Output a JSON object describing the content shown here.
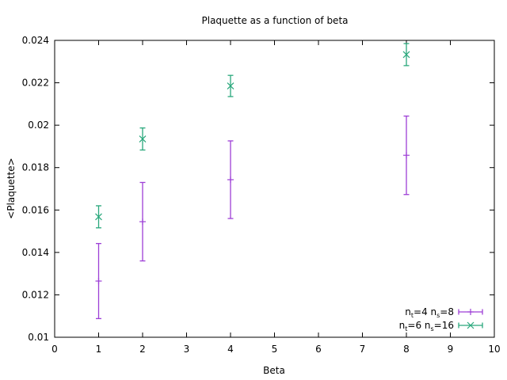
{
  "chart_data": {
    "type": "scatter",
    "title": "Plaquette as a function of beta",
    "xlabel": "Beta",
    "ylabel": "<Plaquette>",
    "xlim": [
      0,
      10
    ],
    "ylim": [
      0.01,
      0.024
    ],
    "xticks": [
      0,
      1,
      2,
      3,
      4,
      5,
      6,
      7,
      8,
      9,
      10
    ],
    "xtick_labels": [
      "0",
      "1",
      "2",
      "3",
      "4",
      "5",
      "6",
      "7",
      "8",
      "9",
      "10"
    ],
    "yticks": [
      0.01,
      0.012,
      0.014,
      0.016,
      0.018,
      0.02,
      0.022,
      0.024
    ],
    "ytick_labels": [
      "0.01",
      "0.012",
      "0.014",
      "0.016",
      "0.018",
      "0.02",
      "0.022",
      "0.024"
    ],
    "grid": false,
    "legend_position": "bottom-right",
    "series": [
      {
        "legend": {
          "a": "n",
          "a_sub": "t",
          "b": "=4 n",
          "b_sub": "s",
          "c": "=8"
        },
        "color": "#9d3fd6",
        "marker": "plus",
        "points": [
          {
            "x": 1,
            "y": 0.01265,
            "yerr": 0.00177
          },
          {
            "x": 2,
            "y": 0.01545,
            "yerr": 0.00185
          },
          {
            "x": 4,
            "y": 0.01743,
            "yerr": 0.00183
          },
          {
            "x": 8,
            "y": 0.01858,
            "yerr": 0.00185
          }
        ]
      },
      {
        "legend": {
          "a": "n",
          "a_sub": "t",
          "b": "=6 n",
          "b_sub": "s",
          "c": "=16"
        },
        "color": "#2aa87c",
        "marker": "cross",
        "points": [
          {
            "x": 1,
            "y": 0.01568,
            "yerr": 0.00052
          },
          {
            "x": 2,
            "y": 0.01935,
            "yerr": 0.00052
          },
          {
            "x": 4,
            "y": 0.02185,
            "yerr": 0.0005
          },
          {
            "x": 8,
            "y": 0.02333,
            "yerr": 0.00052
          }
        ]
      }
    ]
  }
}
